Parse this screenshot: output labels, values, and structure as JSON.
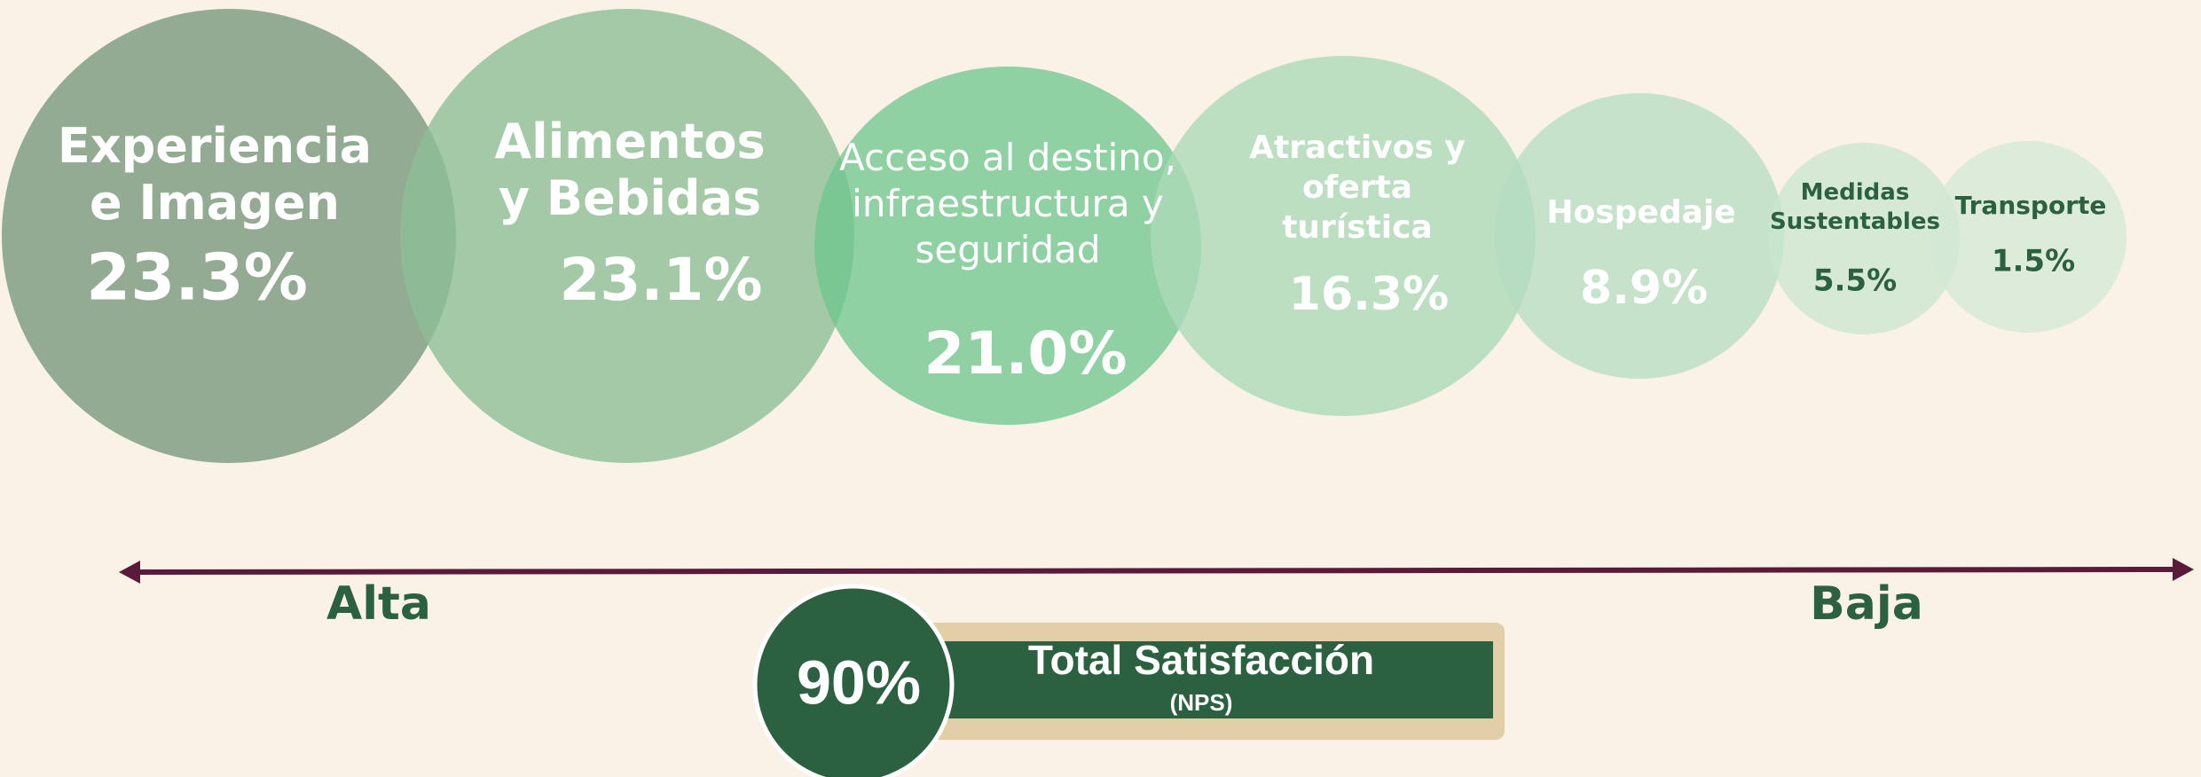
{
  "bubbles": [
    {
      "label": [
        "Experiencia",
        "e Imagen"
      ],
      "value": "23.3%"
    },
    {
      "label": [
        "Alimentos",
        "y Bebidas"
      ],
      "value": "23.1%"
    },
    {
      "label": [
        "Acceso al destino,",
        "infraestructura y",
        "seguridad"
      ],
      "value": "21.0%"
    },
    {
      "label": [
        "Atractivos y",
        "oferta",
        "turística"
      ],
      "value": "16.3%"
    },
    {
      "label": [
        "Hospedaje"
      ],
      "value": "8.9%"
    },
    {
      "label": [
        "Medidas",
        "Sustentables"
      ],
      "value": "5.5%"
    },
    {
      "label": [
        "Transporte"
      ],
      "value": "1.5%"
    }
  ],
  "scale": {
    "left": "Alta",
    "right": "Baja"
  },
  "total": {
    "value": "90%",
    "title": "Total Satisfacción",
    "subtitle": "(NPS)"
  }
}
